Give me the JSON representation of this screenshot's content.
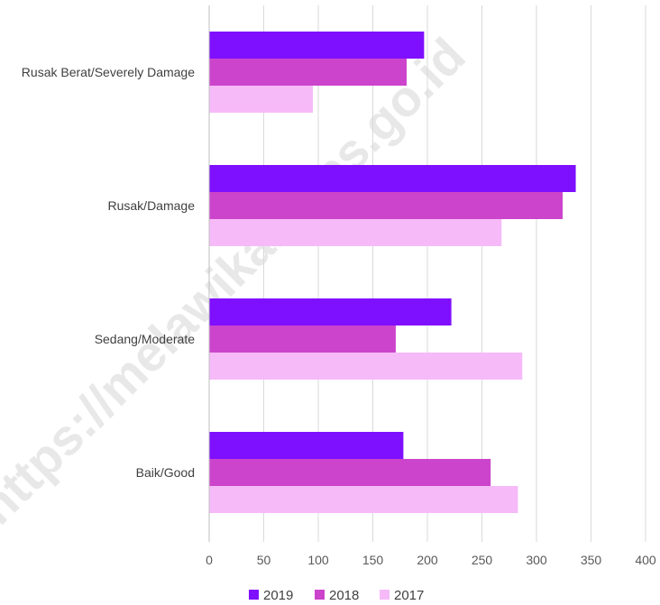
{
  "chart_data": {
    "type": "bar",
    "orientation": "horizontal",
    "categories": [
      "Rusak Berat/Severely Damage",
      "Rusak/Damage",
      "Sedang/Moderate",
      "Baik/Good"
    ],
    "series": [
      {
        "name": "2019",
        "color": "#7f0fff",
        "values": [
          197,
          336,
          222,
          178
        ]
      },
      {
        "name": "2018",
        "color": "#cc44cc",
        "values": [
          181,
          324,
          171,
          258
        ]
      },
      {
        "name": "2017",
        "color": "#f6baf9",
        "values": [
          95,
          268,
          287,
          283
        ]
      }
    ],
    "xlim": [
      0,
      400
    ],
    "xticks": [
      "0",
      "50",
      "100",
      "150",
      "200",
      "250",
      "300",
      "350",
      "400"
    ],
    "grid": true,
    "legend_position": "bottom"
  },
  "watermark": "https://melawikab.bps.go.id"
}
